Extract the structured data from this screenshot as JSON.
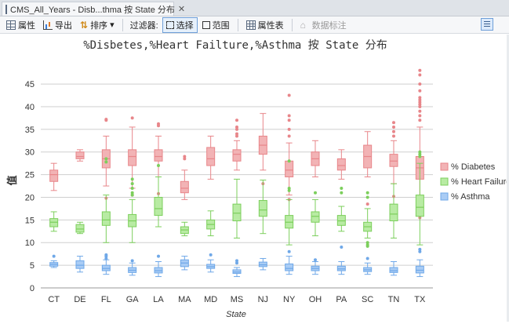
{
  "tab": {
    "title": "CMS_All_Years - Disb...thma 按 State 分布",
    "close": "✕",
    "icon": "grid-icon"
  },
  "toolbar": {
    "properties": "属性",
    "export": "导出",
    "sort": "排序",
    "sort_arrow": "▾",
    "filter_label": "过滤器:",
    "select": "选择",
    "range": "范围",
    "attribute_table": "属性表",
    "data_labels": "数据标注"
  },
  "chart_data": {
    "type": "box",
    "title": "%Disbetes,%Heart Failture,%Asthma 按 State 分布",
    "xlabel": "State",
    "ylabel": "值",
    "ylim": [
      0,
      49
    ],
    "yticks": [
      0,
      5,
      10,
      15,
      20,
      25,
      30,
      35,
      40,
      45
    ],
    "grid": true,
    "legend_position": "right",
    "categories": [
      "CT",
      "DE",
      "FL",
      "GA",
      "LA",
      "MA",
      "MD",
      "MS",
      "NJ",
      "NY",
      "OH",
      "PA",
      "SC",
      "TN",
      "TX"
    ],
    "series": [
      {
        "name": "% Diabetes",
        "color": "#e8868a",
        "fill": "#f2b3b5",
        "boxes": [
          {
            "min": 21.5,
            "q1": 23.5,
            "median": 25,
            "q3": 26,
            "max": 27.5,
            "outliers": []
          },
          {
            "min": 28,
            "q1": 28.5,
            "median": 29,
            "q3": 30,
            "max": 30.5,
            "outliers": []
          },
          {
            "min": 22.5,
            "q1": 26.5,
            "median": 28.5,
            "q3": 30.5,
            "max": 33.5,
            "outliers": [
              37,
              37.2,
              19.8
            ]
          },
          {
            "min": 22,
            "q1": 27,
            "median": 29,
            "q3": 30.5,
            "max": 35.5,
            "outliers": [
              37.5,
              20.5
            ]
          },
          {
            "min": 24.5,
            "q1": 28,
            "median": 29,
            "q3": 30.5,
            "max": 33.5,
            "outliers": [
              35.8,
              36.2,
              20.8
            ]
          },
          {
            "min": 19.5,
            "q1": 21,
            "median": 22,
            "q3": 23.5,
            "max": 26,
            "outliers": [
              28.5,
              29
            ]
          },
          {
            "min": 24,
            "q1": 27,
            "median": 28.5,
            "q3": 31,
            "max": 33.5,
            "outliers": []
          },
          {
            "min": 26,
            "q1": 28,
            "median": 29.5,
            "q3": 30.5,
            "max": 32.5,
            "outliers": [
              33.5,
              34,
              35,
              35.5,
              37
            ]
          },
          {
            "min": 26,
            "q1": 29.5,
            "median": 31.5,
            "q3": 33.5,
            "max": 38.5,
            "outliers": [
              23
            ]
          },
          {
            "min": 20.5,
            "q1": 24.5,
            "median": 26,
            "q3": 28,
            "max": 32,
            "outliers": [
              33.5,
              35,
              37,
              38,
              42.5,
              19.5
            ]
          },
          {
            "min": 24.5,
            "q1": 27,
            "median": 28.5,
            "q3": 30,
            "max": 32.5,
            "outliers": []
          },
          {
            "min": 24,
            "q1": 26,
            "median": 27,
            "q3": 28.5,
            "max": 30.5,
            "outliers": []
          },
          {
            "min": 24.5,
            "q1": 26.5,
            "median": 29,
            "q3": 31.5,
            "max": 34.5,
            "outliers": [
              18.5
            ]
          },
          {
            "min": 23,
            "q1": 26.8,
            "median": 28,
            "q3": 29.5,
            "max": 32.5,
            "outliers": [
              33.5,
              34.5,
              35.5,
              36.5,
              20.2
            ]
          },
          {
            "min": 16.5,
            "q1": 24,
            "median": 26.5,
            "q3": 29,
            "max": 35.5,
            "outliers": [
              37,
              38,
              39,
              40,
              40.5,
              41,
              41.5,
              42,
              43.5,
              45,
              47,
              48,
              16,
              15.5
            ]
          }
        ]
      },
      {
        "name": "% Heart Failure",
        "color": "#7ccf5c",
        "fill": "#b8eba3",
        "boxes": [
          {
            "min": 12.5,
            "q1": 13.5,
            "median": 14.5,
            "q3": 15.3,
            "max": 16.8,
            "outliers": []
          },
          {
            "min": 12,
            "q1": 12.3,
            "median": 13,
            "q3": 14,
            "max": 14.5,
            "outliers": []
          },
          {
            "min": 10,
            "q1": 13.8,
            "median": 15,
            "q3": 16.8,
            "max": 20.5,
            "outliers": [
              28.5,
              27.8
            ]
          },
          {
            "min": 10,
            "q1": 13.5,
            "median": 14.8,
            "q3": 16.2,
            "max": 19.5,
            "outliers": [
              21,
              22,
              23,
              24,
              20.5
            ]
          },
          {
            "min": 13.5,
            "q1": 16,
            "median": 17.5,
            "q3": 20,
            "max": 24.5,
            "outliers": [
              27
            ]
          },
          {
            "min": 11.5,
            "q1": 12,
            "median": 12.8,
            "q3": 13.5,
            "max": 14.5,
            "outliers": []
          },
          {
            "min": 11.5,
            "q1": 13,
            "median": 14,
            "q3": 15,
            "max": 17,
            "outliers": []
          },
          {
            "min": 11,
            "q1": 14.8,
            "median": 16.5,
            "q3": 18.5,
            "max": 24,
            "outliers": []
          },
          {
            "min": 12,
            "q1": 15.8,
            "median": 17.2,
            "q3": 19.3,
            "max": 23.8,
            "outliers": []
          },
          {
            "min": 9.5,
            "q1": 13.2,
            "median": 14.5,
            "q3": 16,
            "max": 19.5,
            "outliers": [
              21.5,
              22,
              28
            ]
          },
          {
            "min": 11.5,
            "q1": 14.5,
            "median": 15.8,
            "q3": 16.8,
            "max": 19.5,
            "outliers": [
              21
            ]
          },
          {
            "min": 12.5,
            "q1": 13.8,
            "median": 14.8,
            "q3": 16,
            "max": 18,
            "outliers": [
              21,
              22
            ]
          },
          {
            "min": 11,
            "q1": 12.5,
            "median": 13.5,
            "q3": 14.5,
            "max": 17.5,
            "outliers": [
              20,
              21,
              10,
              9.5,
              9.2
            ]
          },
          {
            "min": 11,
            "q1": 14.8,
            "median": 16.3,
            "q3": 18.5,
            "max": 23,
            "outliers": []
          },
          {
            "min": 9.5,
            "q1": 15.8,
            "median": 17.8,
            "q3": 20.5,
            "max": 27.5,
            "outliers": [
              29,
              29.5,
              30
            ]
          }
        ]
      },
      {
        "name": "% Asthma",
        "color": "#6fa8e8",
        "fill": "#a9ccf5",
        "boxes": [
          {
            "min": 4.5,
            "q1": 4.8,
            "median": 5.2,
            "q3": 5.6,
            "max": 6,
            "outliers": [
              7
            ]
          },
          {
            "min": 3.5,
            "q1": 4.3,
            "median": 5,
            "q3": 6,
            "max": 7,
            "outliers": []
          },
          {
            "min": 3,
            "q1": 3.8,
            "median": 4.3,
            "q3": 5,
            "max": 6.2,
            "outliers": [
              6.5,
              7,
              7.3
            ]
          },
          {
            "min": 2.8,
            "q1": 3.4,
            "median": 3.9,
            "q3": 4.5,
            "max": 5.5,
            "outliers": [
              6
            ]
          },
          {
            "min": 2.5,
            "q1": 3.3,
            "median": 3.8,
            "q3": 4.5,
            "max": 5.8,
            "outliers": [
              7
            ]
          },
          {
            "min": 4,
            "q1": 4.7,
            "median": 5.5,
            "q3": 6.2,
            "max": 7,
            "outliers": []
          },
          {
            "min": 3.5,
            "q1": 4.3,
            "median": 4.7,
            "q3": 5.2,
            "max": 6.2,
            "outliers": [
              7.3
            ]
          },
          {
            "min": 2.5,
            "q1": 3.2,
            "median": 3.5,
            "q3": 4,
            "max": 4.5,
            "outliers": [
              5.5,
              6
            ]
          },
          {
            "min": 4,
            "q1": 4.7,
            "median": 5.1,
            "q3": 5.7,
            "max": 6.5,
            "outliers": []
          },
          {
            "min": 3,
            "q1": 3.8,
            "median": 4.3,
            "q3": 5.3,
            "max": 7,
            "outliers": [
              8
            ]
          },
          {
            "min": 3,
            "q1": 3.8,
            "median": 4.3,
            "q3": 4.8,
            "max": 5.8,
            "outliers": [
              6.2
            ]
          },
          {
            "min": 3,
            "q1": 3.8,
            "median": 4.2,
            "q3": 4.8,
            "max": 5.8,
            "outliers": [
              9
            ]
          },
          {
            "min": 3,
            "q1": 3.6,
            "median": 4,
            "q3": 4.5,
            "max": 5.5,
            "outliers": [
              6.5
            ]
          },
          {
            "min": 2.8,
            "q1": 3.4,
            "median": 3.8,
            "q3": 4.5,
            "max": 5.8,
            "outliers": []
          },
          {
            "min": 2.5,
            "q1": 3.3,
            "median": 3.9,
            "q3": 4.8,
            "max": 6.2,
            "outliers": [
              8,
              8.5
            ]
          }
        ]
      }
    ]
  }
}
